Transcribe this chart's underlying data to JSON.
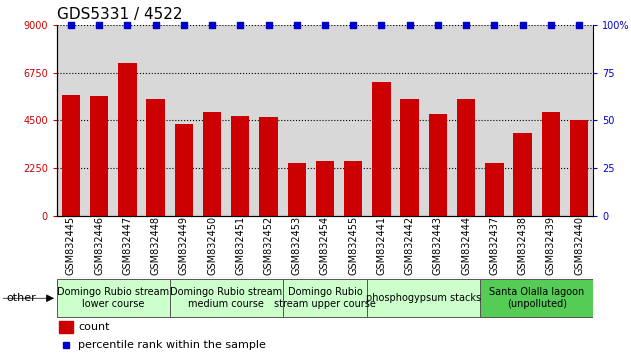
{
  "title": "GDS5331 / 4522",
  "categories": [
    "GSM832445",
    "GSM832446",
    "GSM832447",
    "GSM832448",
    "GSM832449",
    "GSM832450",
    "GSM832451",
    "GSM832452",
    "GSM832453",
    "GSM832454",
    "GSM832455",
    "GSM832441",
    "GSM832442",
    "GSM832443",
    "GSM832444",
    "GSM832437",
    "GSM832438",
    "GSM832439",
    "GSM832440"
  ],
  "counts": [
    5700,
    5650,
    7200,
    5500,
    4350,
    4900,
    4700,
    4650,
    2500,
    2600,
    2600,
    6300,
    5500,
    4800,
    5500,
    2500,
    3900,
    4900,
    4500
  ],
  "percentiles": [
    100,
    100,
    100,
    100,
    100,
    100,
    100,
    100,
    100,
    100,
    100,
    100,
    100,
    100,
    100,
    100,
    100,
    100,
    100
  ],
  "bar_color": "#cc0000",
  "dot_color": "#0000cc",
  "ylim_left": [
    0,
    9000
  ],
  "ylim_right": [
    0,
    100
  ],
  "yticks_left": [
    0,
    2250,
    4500,
    6750,
    9000
  ],
  "yticks_right": [
    0,
    25,
    50,
    75,
    100
  ],
  "groups": [
    {
      "label": "Domingo Rubio stream\nlower course",
      "start": 0,
      "end": 3,
      "color": "#ccffcc"
    },
    {
      "label": "Domingo Rubio stream\nmedium course",
      "start": 4,
      "end": 7,
      "color": "#ccffcc"
    },
    {
      "label": "Domingo Rubio\nstream upper course",
      "start": 8,
      "end": 10,
      "color": "#ccffcc"
    },
    {
      "label": "phosphogypsum stacks",
      "start": 11,
      "end": 14,
      "color": "#ccffcc"
    },
    {
      "label": "Santa Olalla lagoon\n(unpolluted)",
      "start": 15,
      "end": 18,
      "color": "#55cc55"
    }
  ],
  "other_label": "other",
  "legend_count_label": "count",
  "legend_pct_label": "percentile rank within the sample",
  "background_color": "#ffffff",
  "plot_bg_color": "#d8d8d8",
  "title_fontsize": 11,
  "tick_fontsize": 7,
  "group_fontsize": 7,
  "legend_fontsize": 8,
  "dotted_line_color": "#000000"
}
